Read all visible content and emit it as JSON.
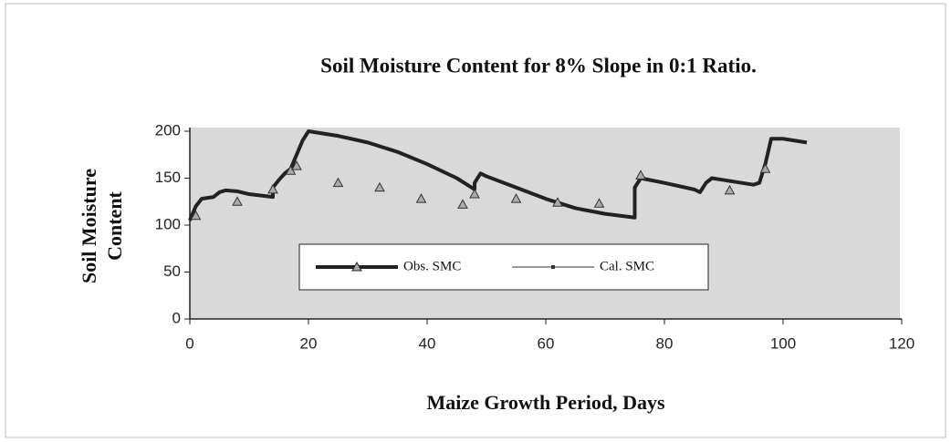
{
  "chart_data": {
    "type": "line",
    "title": "Soil Moisture Content for 8% Slope in 0:1 Ratio.",
    "xlabel": "Maize Growth Period, Days",
    "ylabel": [
      "Soil Moisture",
      "Content"
    ],
    "xlim": [
      0,
      120
    ],
    "xticks": [
      0,
      20,
      40,
      60,
      80,
      100,
      120
    ],
    "ylim": [
      0,
      200
    ],
    "yticks": [
      0,
      50,
      100,
      150,
      200
    ],
    "legend": "center",
    "series": [
      {
        "name": "Obs. SMC",
        "color": "#222222",
        "style": "line",
        "x": [
          0,
          1,
          2,
          4,
          5,
          6,
          8,
          10,
          14,
          14,
          15,
          16,
          17,
          18,
          19,
          20,
          25,
          30,
          35,
          40,
          45,
          48,
          48,
          49,
          50,
          55,
          60,
          65,
          70,
          75,
          75,
          76,
          80,
          85,
          86,
          87,
          88,
          90,
          95,
          96,
          97,
          98,
          100,
          104
        ],
        "values": [
          105,
          120,
          128,
          130,
          135,
          137,
          136,
          133,
          130,
          140,
          148,
          155,
          160,
          175,
          190,
          200,
          195,
          188,
          178,
          165,
          150,
          138,
          145,
          155,
          152,
          140,
          128,
          118,
          112,
          108,
          140,
          150,
          145,
          138,
          135,
          145,
          150,
          148,
          143,
          145,
          165,
          192,
          192,
          188
        ]
      },
      {
        "name": "Cal. SMC",
        "color": "#333333",
        "style": "marker",
        "x": [
          1,
          8,
          14,
          17,
          18,
          25,
          32,
          39,
          46,
          48,
          55,
          62,
          69,
          76,
          91,
          97
        ],
        "values": [
          110,
          125,
          138,
          158,
          163,
          145,
          140,
          128,
          122,
          133,
          128,
          124,
          123,
          153,
          137,
          160
        ]
      }
    ]
  }
}
